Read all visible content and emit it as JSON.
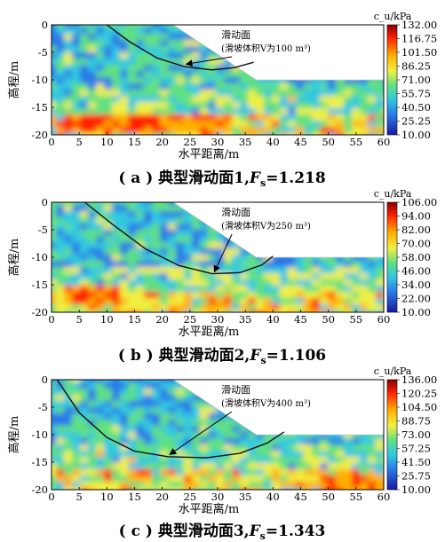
{
  "chart_data": [
    {
      "type": "heatmap",
      "panel_label": "( a ) 典型滑动面1, F_s = 1.218",
      "caption_prefix": "( a ) 典型滑动面1,",
      "caption_fs": "F",
      "caption_fs_sub": "s",
      "caption_fs_value": "=1.218",
      "xlabel": "水平距离/m",
      "ylabel": "高程/m",
      "xlim": [
        0,
        60
      ],
      "ylim": [
        -20,
        0
      ],
      "xticks": [
        "0",
        "5",
        "10",
        "15",
        "20",
        "25",
        "30",
        "35",
        "40",
        "45",
        "50",
        "55",
        "60"
      ],
      "yticks": [
        "0",
        "-5",
        "-10",
        "-15",
        "-20"
      ],
      "colorbar_title": "c_u/kPa",
      "colorbar_ticks": [
        "132.00",
        "116.75",
        "101.50",
        "86.25",
        "71.00",
        "55.75",
        "40.50",
        "25.25",
        "10.00"
      ],
      "annotation": [
        "滑动面",
        "(滑坡体积V为100 m³)"
      ],
      "slope_surface": [
        [
          0,
          0
        ],
        [
          22,
          0
        ],
        [
          37,
          -10
        ],
        [
          60,
          -10
        ]
      ],
      "slip_surface": [
        [
          10,
          0
        ],
        [
          14,
          -3
        ],
        [
          19,
          -6
        ],
        [
          24,
          -7.6
        ],
        [
          29,
          -8.2
        ],
        [
          33,
          -7.8
        ],
        [
          36.5,
          -6.8
        ]
      ],
      "high_zone": {
        "x": [
          2,
          32
        ],
        "y": [
          -19.5,
          -16
        ],
        "level": "high"
      }
    },
    {
      "type": "heatmap",
      "panel_label": "( b ) 典型滑动面2, F_s = 1.106",
      "caption_prefix": "( b ) 典型滑动面2,",
      "caption_fs": "F",
      "caption_fs_sub": "s",
      "caption_fs_value": "=1.106",
      "xlabel": "水平距离/m",
      "ylabel": "高程/m",
      "xlim": [
        0,
        60
      ],
      "ylim": [
        -20,
        0
      ],
      "xticks": [
        "0",
        "5",
        "10",
        "15",
        "20",
        "25",
        "30",
        "35",
        "40",
        "45",
        "50",
        "55",
        "60"
      ],
      "yticks": [
        "0",
        "-5",
        "-10",
        "-15",
        "-20"
      ],
      "colorbar_title": "c_u/kPa",
      "colorbar_ticks": [
        "106.00",
        "94.00",
        "82.00",
        "70.00",
        "58.00",
        "46.00",
        "34.00",
        "22.00",
        "10.00"
      ],
      "annotation": [
        "滑动面",
        "(滑坡体积V为250 m³)"
      ],
      "slope_surface": [
        [
          0,
          0
        ],
        [
          22,
          0
        ],
        [
          37,
          -10
        ],
        [
          60,
          -10
        ]
      ],
      "slip_surface": [
        [
          6,
          0
        ],
        [
          11,
          -4
        ],
        [
          17,
          -8.5
        ],
        [
          23,
          -11.5
        ],
        [
          29,
          -13
        ],
        [
          34,
          -12.8
        ],
        [
          38,
          -11.4
        ],
        [
          40,
          -9.8
        ]
      ],
      "high_zone": {
        "x": [
          2,
          11
        ],
        "y": [
          -18,
          -14.5
        ],
        "level": "high"
      }
    },
    {
      "type": "heatmap",
      "panel_label": "( c ) 典型滑动面3, F_s = 1.343",
      "caption_prefix": "( c ) 典型滑动面3,",
      "caption_fs": "F",
      "caption_fs_sub": "s",
      "caption_fs_value": "=1.343",
      "xlabel": "水平距离/m",
      "ylabel": "高程/m",
      "xlim": [
        0,
        60
      ],
      "ylim": [
        -20,
        0
      ],
      "xticks": [
        "0",
        "5",
        "10",
        "15",
        "20",
        "25",
        "30",
        "35",
        "40",
        "45",
        "50",
        "55",
        "60"
      ],
      "yticks": [
        "0",
        "-5",
        "-10",
        "-15",
        "-20"
      ],
      "colorbar_title": "c_u/kPa",
      "colorbar_ticks": [
        "136.00",
        "120.25",
        "104.50",
        "88.75",
        "73.00",
        "57.25",
        "41.50",
        "25.75",
        "10.00"
      ],
      "annotation": [
        "滑动面",
        "(滑坡体积V为400 m³)"
      ],
      "slope_surface": [
        [
          0,
          0
        ],
        [
          22,
          0
        ],
        [
          37,
          -10
        ],
        [
          60,
          -10
        ]
      ],
      "slip_surface": [
        [
          1,
          0
        ],
        [
          5,
          -6
        ],
        [
          10,
          -10.5
        ],
        [
          15,
          -13
        ],
        [
          21,
          -14
        ],
        [
          28,
          -14.2
        ],
        [
          34,
          -13.4
        ],
        [
          39,
          -11.5
        ],
        [
          42,
          -9.5
        ]
      ],
      "high_zone": {
        "x": [
          48,
          60
        ],
        "y": [
          -20,
          -16.5
        ],
        "level": "high"
      }
    }
  ]
}
